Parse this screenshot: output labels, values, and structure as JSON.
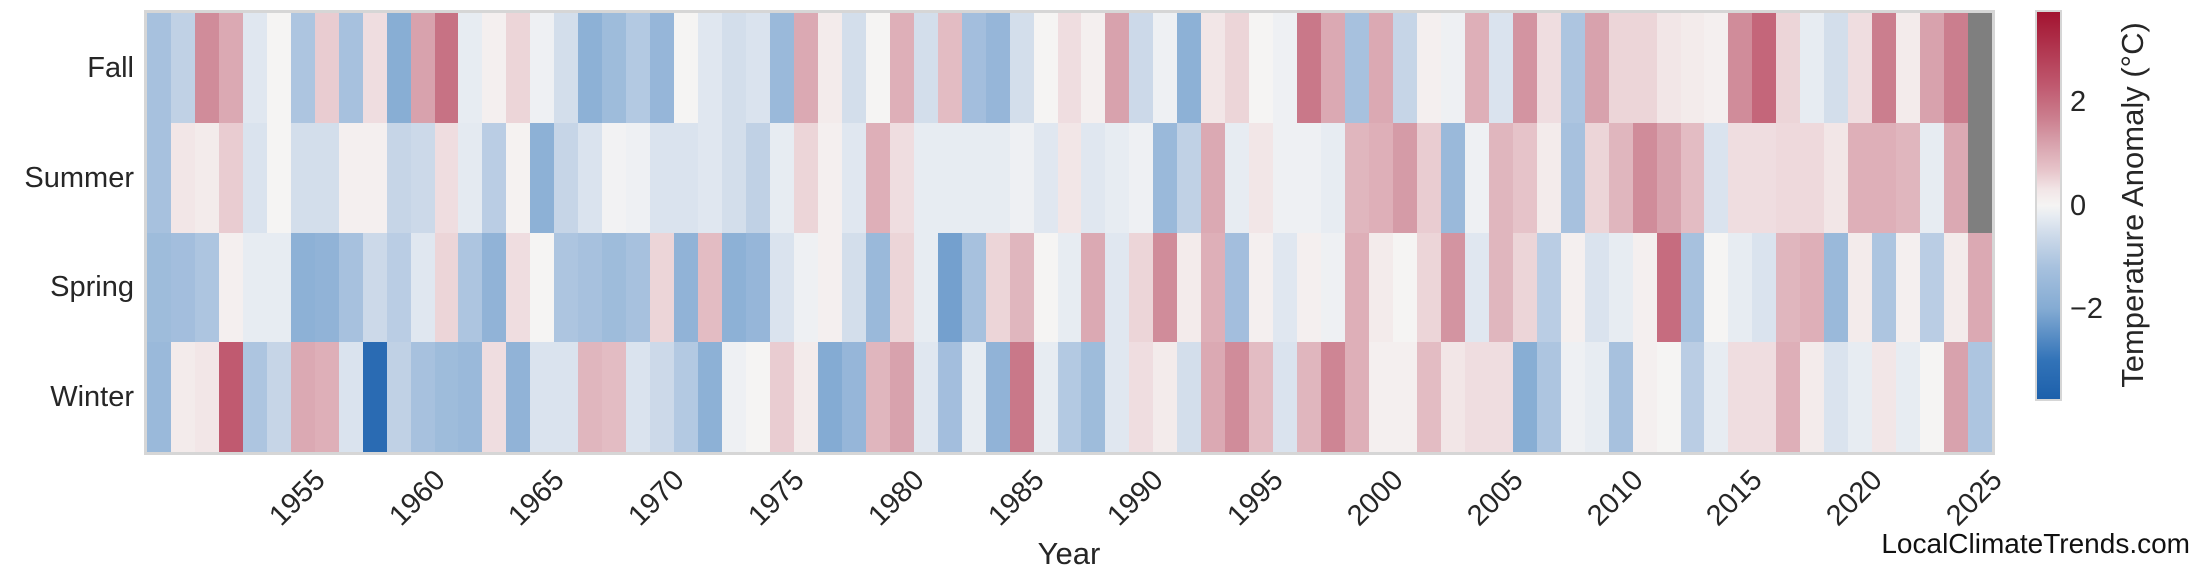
{
  "figure": {
    "xlabel": "Year",
    "row_labels": [
      "Fall",
      "Summer",
      "Spring",
      "Winter"
    ],
    "x_tick_labels": [
      "1955",
      "1960",
      "1965",
      "1970",
      "1975",
      "1980",
      "1985",
      "1990",
      "1995",
      "2000",
      "2005",
      "2010",
      "2015",
      "2020",
      "2025"
    ],
    "watermark": "LocalClimateTrends.com"
  },
  "colorbar": {
    "label": "Temperature Anomaly (°C)",
    "tick_labels": [
      "2",
      "0",
      "−2"
    ],
    "tick_values": [
      2,
      0,
      -2
    ],
    "vmin": -3.75,
    "vmax": 3.75
  },
  "chart_data": {
    "type": "heatmap",
    "title": "",
    "xlabel": "Year",
    "ylabel": "",
    "rows": [
      "Fall",
      "Summer",
      "Spring",
      "Winter"
    ],
    "x": [
      1949,
      1950,
      1951,
      1952,
      1953,
      1954,
      1955,
      1956,
      1957,
      1958,
      1959,
      1960,
      1961,
      1962,
      1963,
      1964,
      1965,
      1966,
      1967,
      1968,
      1969,
      1970,
      1971,
      1972,
      1973,
      1974,
      1975,
      1976,
      1977,
      1978,
      1979,
      1980,
      1981,
      1982,
      1983,
      1984,
      1985,
      1986,
      1987,
      1988,
      1989,
      1990,
      1991,
      1992,
      1993,
      1994,
      1995,
      1996,
      1997,
      1998,
      1999,
      2000,
      2001,
      2002,
      2003,
      2004,
      2005,
      2006,
      2007,
      2008,
      2009,
      2010,
      2011,
      2012,
      2013,
      2014,
      2015,
      2016,
      2017,
      2018,
      2019,
      2020,
      2021,
      2022,
      2023,
      2024,
      2025
    ],
    "x_tick_step": 5,
    "legend_position": "right colorbar",
    "grid": false,
    "units": "°C anomaly",
    "missing_value_color": "#7f7f7f",
    "colormap": "diverging blue-white-red (RdBu_r style)",
    "colormap_stops": [
      [
        -3.75,
        "#1d60ab"
      ],
      [
        -3.0,
        "#3273b8"
      ],
      [
        -2.0,
        "#84abd3"
      ],
      [
        -1.2,
        "#a7c1de"
      ],
      [
        -0.6,
        "#ccd9e9"
      ],
      [
        -0.2,
        "#e7ecf2"
      ],
      [
        0.0,
        "#f5f4f3"
      ],
      [
        0.3,
        "#f2e6e7"
      ],
      [
        0.7,
        "#e6c3c9"
      ],
      [
        1.2,
        "#d8a2ad"
      ],
      [
        1.7,
        "#cb7e8e"
      ],
      [
        2.3,
        "#c05a70"
      ],
      [
        3.75,
        "#a21330"
      ]
    ],
    "series": [
      {
        "name": "Fall",
        "values": [
          -1.2,
          -0.8,
          1.5,
          1.1,
          -0.3,
          0.0,
          -1.1,
          0.6,
          -1.2,
          0.4,
          -1.9,
          1.2,
          1.9,
          -0.2,
          0.1,
          0.5,
          -0.1,
          -0.5,
          -1.8,
          -1.4,
          -1.0,
          -1.6,
          0.0,
          -0.3,
          -0.5,
          -0.4,
          -1.5,
          1.1,
          0.2,
          -0.5,
          0.0,
          1.0,
          -0.5,
          0.8,
          -1.3,
          -1.6,
          -0.5,
          0.0,
          0.4,
          0.1,
          1.2,
          -0.6,
          -0.1,
          -1.8,
          0.3,
          0.5,
          0.0,
          -0.1,
          1.8,
          1.1,
          -1.2,
          1.1,
          -0.7,
          0.1,
          -0.1,
          1.0,
          -0.4,
          1.4,
          0.4,
          -1.1,
          1.2,
          0.5,
          0.5,
          0.3,
          0.2,
          0.1,
          1.5,
          2.1,
          0.5,
          -0.2,
          -0.5,
          0.4,
          1.7,
          0.2,
          1.2,
          1.7,
          null
        ]
      },
      {
        "name": "Summer",
        "values": [
          -1.2,
          0.3,
          0.2,
          0.6,
          -0.4,
          0.0,
          -0.5,
          -0.5,
          0.1,
          0.1,
          -0.7,
          -0.6,
          0.4,
          -0.25,
          -0.9,
          0.05,
          -1.8,
          -0.7,
          -0.4,
          -0.05,
          -0.1,
          -0.4,
          -0.4,
          -0.3,
          -0.5,
          -0.8,
          -0.2,
          0.5,
          0.1,
          -0.3,
          1.0,
          0.4,
          -0.2,
          -0.2,
          -0.2,
          -0.2,
          -0.1,
          -0.3,
          0.3,
          -0.3,
          -0.2,
          -0.1,
          -1.5,
          -0.8,
          1.1,
          -0.2,
          0.3,
          -0.1,
          -0.1,
          -0.2,
          0.9,
          1.0,
          1.3,
          0.6,
          -1.5,
          -0.1,
          0.9,
          0.7,
          0.2,
          -1.2,
          0.5,
          0.9,
          1.5,
          1.2,
          0.8,
          -0.4,
          0.4,
          0.4,
          0.45,
          0.45,
          0.3,
          1.0,
          1.0,
          0.9,
          -0.2,
          1.1,
          null
        ]
      },
      {
        "name": "Spring",
        "values": [
          -1.4,
          -1.3,
          -1.1,
          0.1,
          -0.2,
          -0.2,
          -1.8,
          -1.7,
          -1.2,
          -0.6,
          -0.9,
          -0.3,
          0.5,
          -1.1,
          -1.7,
          0.4,
          0.0,
          -1.1,
          -1.2,
          -1.4,
          -1.2,
          0.5,
          -1.7,
          0.8,
          -1.8,
          -1.6,
          -0.4,
          -0.1,
          0.1,
          -0.5,
          -1.5,
          0.5,
          -0.2,
          -2.2,
          -1.2,
          0.5,
          0.9,
          0.0,
          -0.2,
          1.1,
          -0.3,
          0.5,
          1.5,
          0.2,
          1.0,
          -1.3,
          0.1,
          -0.3,
          0.1,
          -0.1,
          1.0,
          0.2,
          0.0,
          0.5,
          1.4,
          -0.3,
          0.9,
          0.5,
          -0.9,
          0.1,
          -0.4,
          -0.2,
          0.1,
          2.0,
          -1.2,
          0.0,
          -0.2,
          -0.4,
          0.9,
          1.0,
          -1.5,
          0.2,
          -1.1,
          0.1,
          -0.9,
          0.2,
          1.1
        ]
      },
      {
        "name": "Winter",
        "values": [
          -1.5,
          0.2,
          0.3,
          2.3,
          -1.1,
          -0.7,
          1.1,
          1.0,
          -0.4,
          -3.3,
          -0.8,
          -1.2,
          -1.4,
          -1.5,
          0.4,
          -1.7,
          -0.4,
          -0.4,
          0.9,
          0.8,
          -0.4,
          -0.6,
          -1.0,
          -1.8,
          -0.1,
          0.0,
          0.6,
          0.2,
          -2.0,
          -1.6,
          0.9,
          1.2,
          -0.3,
          -1.3,
          -0.2,
          -1.7,
          1.8,
          -0.2,
          -1.0,
          -1.4,
          -0.3,
          0.4,
          0.2,
          -0.5,
          1.1,
          1.5,
          0.8,
          -0.4,
          0.9,
          1.6,
          1.0,
          0.1,
          0.1,
          0.8,
          0.3,
          0.4,
          0.4,
          -1.9,
          -1.1,
          -0.1,
          -0.2,
          -1.2,
          0.1,
          0.0,
          -0.9,
          -0.2,
          0.4,
          0.4,
          1.0,
          0.2,
          -0.4,
          -0.2,
          0.3,
          -0.2,
          0.0,
          1.2,
          -1.1
        ]
      }
    ]
  }
}
